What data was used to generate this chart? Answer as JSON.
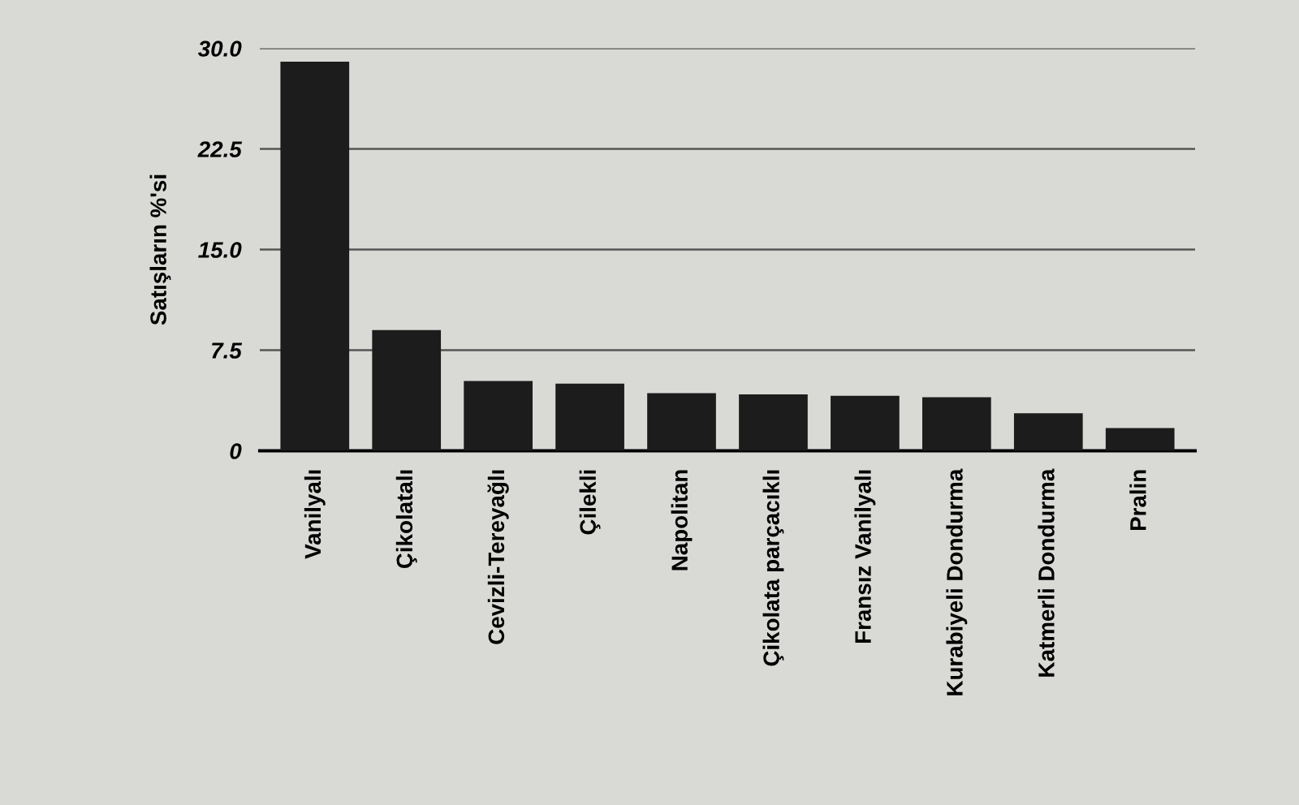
{
  "chart_data": {
    "type": "bar",
    "ylabel": "Satışların %'si",
    "categories": [
      "Vanilyalı",
      "Çikolatalı",
      "Cevizli-Tereyağlı",
      "Çilekli",
      "Napolitan",
      "Çikolata parçacıklı",
      "Fransız Vanilyalı",
      "Kurabiyeli Dondurma",
      "Katmerli Dondurma",
      "Pralin"
    ],
    "values": [
      29.0,
      9.0,
      5.2,
      5.0,
      4.3,
      4.2,
      4.1,
      4.0,
      2.8,
      1.7
    ],
    "color": "#1c1c1c",
    "ylim": [
      0,
      30
    ],
    "yticks": [
      {
        "value": 0,
        "label": "0"
      },
      {
        "value": 7.5,
        "label": "7.5"
      },
      {
        "value": 15,
        "label": "15.0"
      },
      {
        "value": 22.5,
        "label": "22.5"
      },
      {
        "value": 30,
        "label": "30.0"
      }
    ],
    "grid": "y",
    "legend": false
  }
}
